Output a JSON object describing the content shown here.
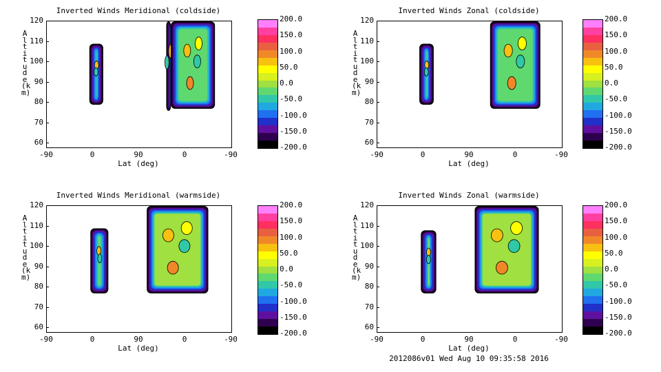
{
  "footer": "2012086v01 Wed Aug 10 09:35:58 2016",
  "chart_data": [
    {
      "type": "heatmap",
      "title": "Inverted Winds Meridional (coldside)",
      "xlabel": "Lat (deg)",
      "ylabel": "Altitude (km)",
      "xticks": [
        "-90",
        "0",
        "90",
        "0",
        "-90"
      ],
      "yticks": [
        "60",
        "70",
        "80",
        "90",
        "100",
        "110",
        "120"
      ],
      "ylim": [
        58,
        120
      ],
      "colorbar": [
        "200.0",
        "150.0",
        "100.0",
        "50.0",
        "0.0",
        "-50.0",
        "-100.0",
        "-150.0",
        "-200.0"
      ],
      "zlim": [
        -200,
        200
      ],
      "regions": [
        {
          "x": [
            -7,
            20
          ],
          "y": [
            79,
            109
          ],
          "value": -40
        },
        {
          "x": [
            143,
            152
          ],
          "y": [
            76,
            120
          ],
          "value": 5
        },
        {
          "x": [
            152,
            238
          ],
          "y": [
            77,
            120
          ],
          "value": -20
        }
      ]
    },
    {
      "type": "heatmap",
      "title": "Inverted Winds Zonal (coldside)",
      "xlabel": "Lat (deg)",
      "ylabel": "Altitude (km)",
      "xticks": [
        "-90",
        "0",
        "90",
        "0",
        "-90"
      ],
      "yticks": [
        "60",
        "70",
        "80",
        "90",
        "100",
        "110",
        "120"
      ],
      "ylim": [
        58,
        120
      ],
      "colorbar": [
        "200.0",
        "150.0",
        "100.0",
        "50.0",
        "0.0",
        "-50.0",
        "-100.0",
        "-150.0",
        "-200.0"
      ],
      "zlim": [
        -200,
        200
      ],
      "regions": [
        {
          "x": [
            -8,
            20
          ],
          "y": [
            79,
            109
          ],
          "value": -20
        },
        {
          "x": [
            130,
            228
          ],
          "y": [
            77,
            120
          ],
          "value": -15
        }
      ]
    },
    {
      "type": "heatmap",
      "title": "Inverted Winds Meridional (warmside)",
      "xlabel": "Lat (deg)",
      "ylabel": "Altitude (km)",
      "xticks": [
        "-90",
        "0",
        "90",
        "0",
        "-90"
      ],
      "yticks": [
        "60",
        "70",
        "80",
        "90",
        "100",
        "110",
        "120"
      ],
      "ylim": [
        58,
        120
      ],
      "colorbar": [
        "200.0",
        "150.0",
        "100.0",
        "50.0",
        "0.0",
        "-50.0",
        "-100.0",
        "-150.0",
        "-200.0"
      ],
      "zlim": [
        -200,
        200
      ],
      "regions": [
        {
          "x": [
            -5,
            30
          ],
          "y": [
            77,
            109
          ],
          "value": -35
        },
        {
          "x": [
            105,
            225
          ],
          "y": [
            77,
            120
          ],
          "value": 10
        }
      ]
    },
    {
      "type": "heatmap",
      "title": "Inverted Winds Zonal (warmside)",
      "xlabel": "Lat (deg)",
      "ylabel": "Altitude (km)",
      "xticks": [
        "-90",
        "0",
        "90",
        "0",
        "-90"
      ],
      "yticks": [
        "60",
        "70",
        "80",
        "90",
        "100",
        "110",
        "120"
      ],
      "ylim": [
        58,
        120
      ],
      "colorbar": [
        "200.0",
        "150.0",
        "100.0",
        "50.0",
        "0.0",
        "-50.0",
        "-100.0",
        "-150.0",
        "-200.0"
      ],
      "zlim": [
        -200,
        200
      ],
      "regions": [
        {
          "x": [
            -5,
            25
          ],
          "y": [
            77,
            108
          ],
          "value": 25
        },
        {
          "x": [
            100,
            225
          ],
          "y": [
            77,
            120
          ],
          "value": 10
        }
      ]
    }
  ]
}
